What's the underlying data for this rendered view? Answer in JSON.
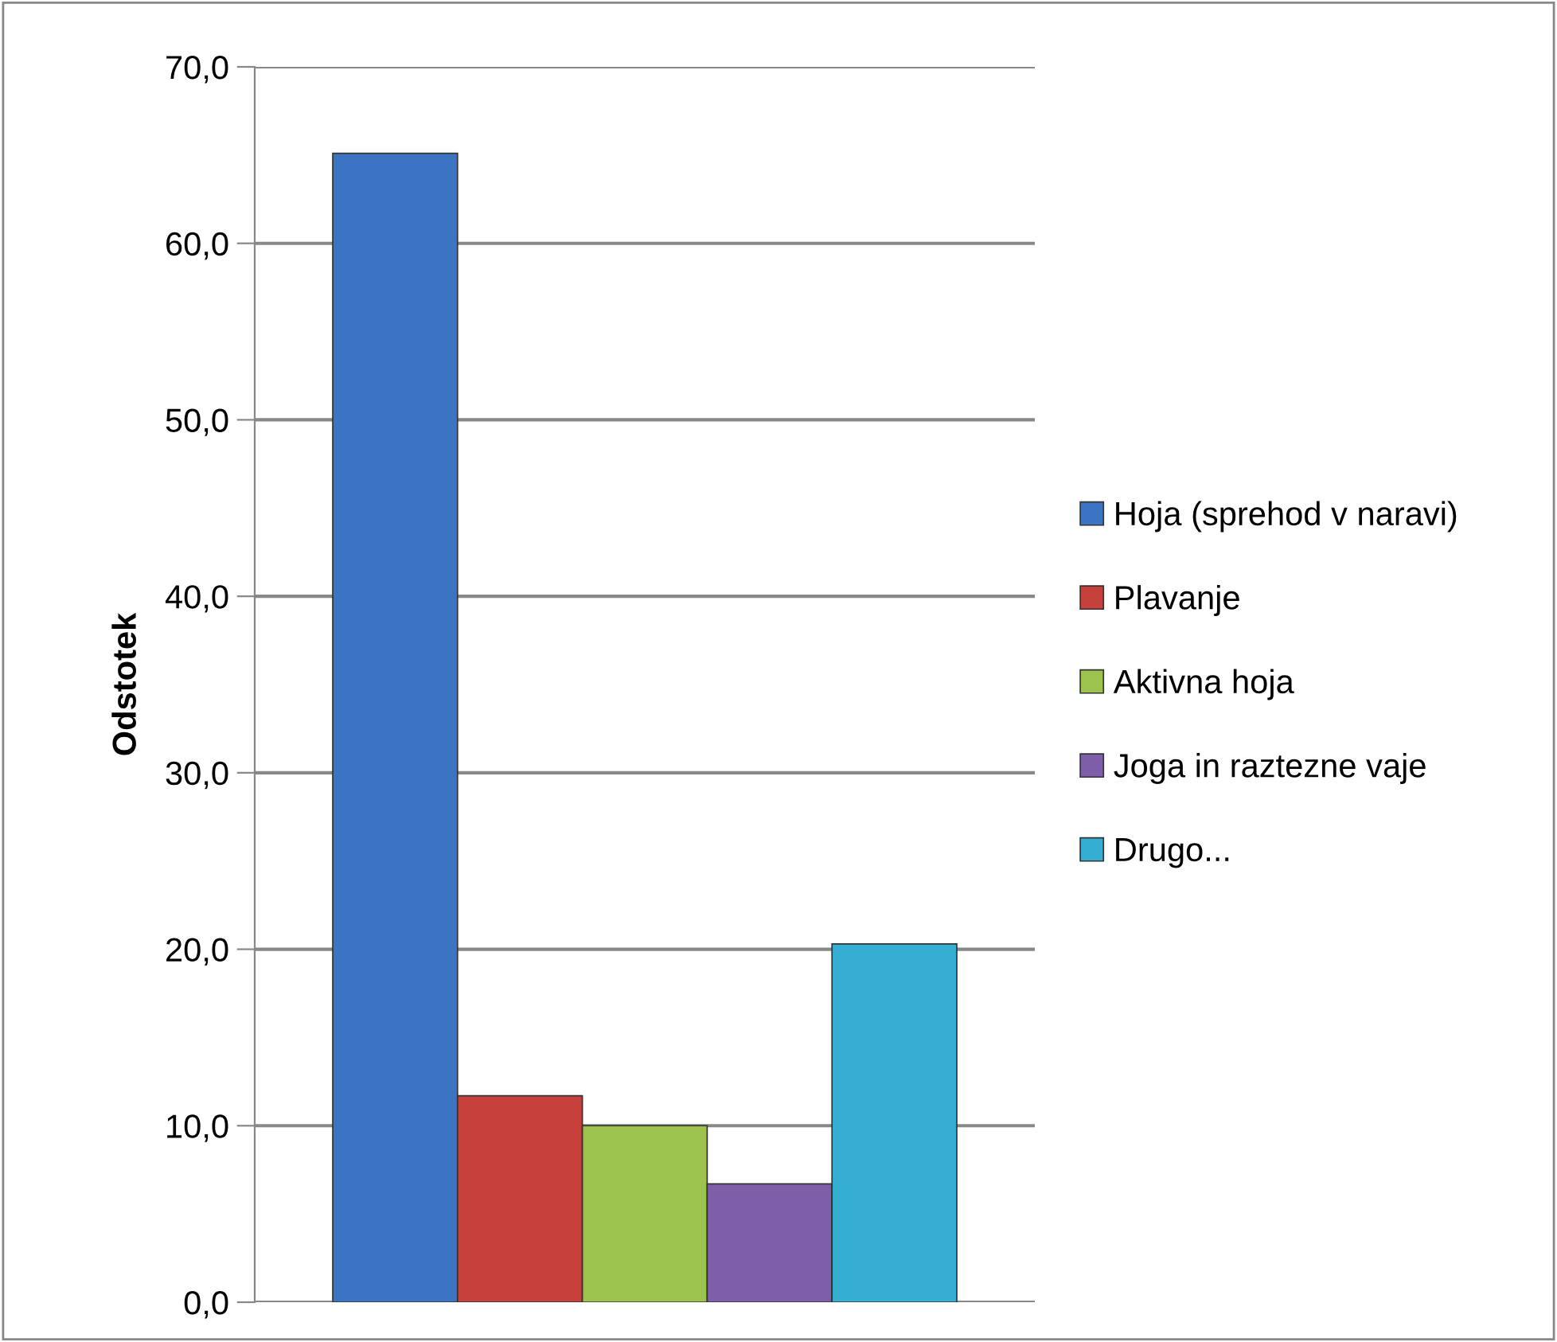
{
  "chart_data": {
    "type": "bar",
    "ylabel": "Odstotek",
    "categories": [
      null
    ],
    "series": [
      {
        "name": "Hoja (sprehod v naravi)",
        "color": "#3b74c2",
        "values": [
          65.1
        ]
      },
      {
        "name": "Plavanje",
        "color": "#c6403c",
        "values": [
          11.7
        ]
      },
      {
        "name": "Aktivna hoja",
        "color": "#9dc24e",
        "values": [
          10.0
        ]
      },
      {
        "name": "Joga in raztezne vaje",
        "color": "#7e5ea8",
        "values": [
          6.7
        ]
      },
      {
        "name": "Drugo...",
        "color": "#35aed2",
        "values": [
          20.3
        ]
      }
    ],
    "ylim": [
      0,
      70
    ],
    "yticks": [
      {
        "value": 0,
        "label": "0,0"
      },
      {
        "value": 10,
        "label": "10,0"
      },
      {
        "value": 20,
        "label": "20,0"
      },
      {
        "value": 30,
        "label": "30,0"
      },
      {
        "value": 40,
        "label": "40,0"
      },
      {
        "value": 50,
        "label": "50,0"
      },
      {
        "value": 60,
        "label": "60,0"
      },
      {
        "value": 70,
        "label": "70,0"
      }
    ],
    "grid": "y",
    "legend": "right"
  }
}
